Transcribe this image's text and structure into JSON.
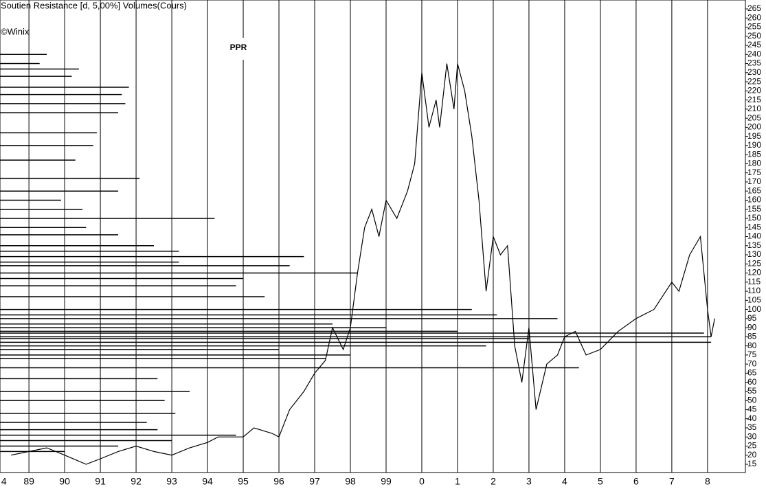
{
  "chart_data": {
    "type": "line",
    "title": "Soutien Resistance [d, 5,00%] Volumes(Cours)",
    "copyright": "©Winix",
    "annotation": "PPR",
    "x": [
      1988.5,
      1989,
      1989.5,
      1990,
      1990.6,
      1991,
      1991.5,
      1992,
      1992.5,
      1993,
      1993.5,
      1994,
      1994.3,
      1995,
      1995.3,
      1995.8,
      1996,
      1996.3,
      1996.7,
      1997,
      1997.3,
      1997.5,
      1997.8,
      1998,
      1998.2,
      1998.4,
      1998.6,
      1998.8,
      1999,
      1999.3,
      1999.6,
      1999.8,
      2000,
      2000.2,
      2000.4,
      2000.5,
      2000.7,
      2000.9,
      2001,
      2001.2,
      2001.4,
      2001.6,
      2001.8,
      2002,
      2002.2,
      2002.4,
      2002.6,
      2002.8,
      2003,
      2003.2,
      2003.5,
      2003.8,
      2004,
      2004.3,
      2004.6,
      2005,
      2005.5,
      2006,
      2006.5,
      2007,
      2007.2,
      2007.5,
      2007.8,
      2008,
      2008.1,
      2008.2
    ],
    "series": [
      {
        "name": "Cours",
        "color": "#000000",
        "values": [
          20,
          22,
          24,
          20,
          15,
          18,
          22,
          25,
          22,
          20,
          24,
          27,
          30,
          30,
          35,
          32,
          30,
          45,
          55,
          65,
          72,
          90,
          78,
          90,
          120,
          145,
          155,
          140,
          160,
          150,
          165,
          180,
          230,
          200,
          215,
          200,
          235,
          210,
          235,
          220,
          195,
          160,
          110,
          140,
          130,
          135,
          80,
          60,
          90,
          45,
          70,
          75,
          85,
          88,
          75,
          78,
          88,
          95,
          100,
          115,
          110,
          130,
          140,
          100,
          85,
          95
        ]
      }
    ],
    "volume_profile": {
      "color": "#000000",
      "levels": [
        240,
        235,
        232,
        228,
        222,
        218,
        213,
        208,
        197,
        190,
        182,
        172,
        165,
        160,
        155,
        150,
        145,
        141,
        135,
        132,
        129,
        126,
        124,
        120,
        117,
        113,
        107,
        100,
        97,
        95,
        92,
        90,
        88,
        87,
        85,
        84,
        82,
        80,
        78,
        75,
        73,
        68,
        62,
        55,
        50,
        43,
        38,
        34,
        31,
        28,
        25,
        22
      ],
      "ends": [
        1989.5,
        1989.3,
        1990.4,
        1990.2,
        1991.8,
        1991.6,
        1991.7,
        1991.5,
        1990.9,
        1990.8,
        1990.3,
        1992.1,
        1991.5,
        1989.9,
        1990.5,
        1994.2,
        1990.6,
        1991.5,
        1992.5,
        1993.2,
        1996.7,
        1993.2,
        1996.3,
        1998.2,
        1995,
        1994.8,
        1995.6,
        2001.4,
        2002.1,
        2003.8,
        1997.5,
        1999,
        2001,
        2007.9,
        2008.1,
        2003,
        2008.1,
        2001.8,
        1996,
        1998,
        1997.3,
        2004.4,
        1992.6,
        1993.5,
        1992.8,
        1993.1,
        1992.3,
        1992.6,
        1994.8,
        1993,
        1991.5,
        1990
      ]
    },
    "xlim": [
      1988.19,
      2009.06
    ],
    "xticks": [
      {
        "value": 1988.3,
        "label": "4"
      },
      {
        "value": 1989,
        "label": "89"
      },
      {
        "value": 1990,
        "label": "90"
      },
      {
        "value": 1991,
        "label": "91"
      },
      {
        "value": 1992,
        "label": "92"
      },
      {
        "value": 1993,
        "label": "93"
      },
      {
        "value": 1994,
        "label": "94"
      },
      {
        "value": 1995,
        "label": "95"
      },
      {
        "value": 1996,
        "label": "96"
      },
      {
        "value": 1997,
        "label": "97"
      },
      {
        "value": 1998,
        "label": "98"
      },
      {
        "value": 1999,
        "label": "99"
      },
      {
        "value": 2000,
        "label": "0"
      },
      {
        "value": 2001,
        "label": "1"
      },
      {
        "value": 2002,
        "label": "2"
      },
      {
        "value": 2003,
        "label": "3"
      },
      {
        "value": 2004,
        "label": "4"
      },
      {
        "value": 2005,
        "label": "5"
      },
      {
        "value": 2006,
        "label": "6"
      },
      {
        "value": 2007,
        "label": "7"
      },
      {
        "value": 2008,
        "label": "8"
      }
    ],
    "ylim": [
      15,
      265
    ],
    "yticks": [
      15,
      20,
      25,
      30,
      35,
      40,
      45,
      50,
      55,
      60,
      65,
      70,
      75,
      80,
      85,
      90,
      95,
      100,
      105,
      110,
      115,
      120,
      125,
      130,
      135,
      140,
      145,
      150,
      155,
      160,
      165,
      170,
      175,
      180,
      185,
      190,
      195,
      200,
      205,
      210,
      215,
      220,
      225,
      230,
      235,
      240,
      245,
      250,
      255,
      260,
      265
    ],
    "grid": true
  }
}
